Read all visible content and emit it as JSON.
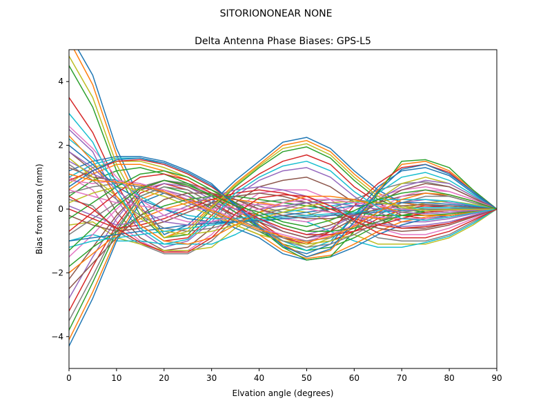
{
  "figure": {
    "suptitle": "SITORIONONEAR   NONE"
  },
  "chart_data": {
    "type": "line",
    "title": "Delta Antenna Phase Biases: GPS-L5",
    "xlabel": "Elvation angle (degrees)",
    "ylabel": "Bias from mean (mm)",
    "xlim": [
      0,
      90
    ],
    "ylim": [
      -5,
      5
    ],
    "xticks": [
      0,
      10,
      20,
      30,
      40,
      50,
      60,
      70,
      80,
      90
    ],
    "yticks": [
      -4,
      -2,
      0,
      2,
      4
    ],
    "grid": false,
    "legend": "none",
    "x": [
      0,
      5,
      10,
      15,
      20,
      25,
      30,
      35,
      40,
      45,
      50,
      55,
      60,
      65,
      70,
      75,
      80,
      85,
      90
    ],
    "colors": [
      "#1f77b4",
      "#ff7f0e",
      "#2ca02c",
      "#d62728",
      "#9467bd",
      "#8c564b",
      "#e377c2",
      "#7f7f7f",
      "#bcbd22",
      "#17becf"
    ],
    "series": [
      {
        "values": [
          5.5,
          4.2,
          1.9,
          0.3,
          -0.8,
          -0.5,
          0.2,
          0.9,
          1.5,
          2.1,
          2.25,
          1.9,
          1.2,
          0.6,
          0.2,
          0.1,
          0.1,
          0.05,
          0
        ]
      },
      {
        "values": [
          5.3,
          3.9,
          1.7,
          0.1,
          -0.9,
          -0.6,
          0.1,
          0.8,
          1.4,
          2.0,
          2.15,
          1.8,
          1.1,
          0.5,
          0.2,
          0.1,
          0.05,
          0.03,
          0
        ]
      },
      {
        "values": [
          4.5,
          3.2,
          1.2,
          -0.2,
          -0.9,
          -0.8,
          0.0,
          0.7,
          1.3,
          1.8,
          1.95,
          1.6,
          0.9,
          0.3,
          0.0,
          -0.1,
          -0.05,
          -0.02,
          0
        ]
      },
      {
        "values": [
          3.5,
          2.4,
          0.8,
          -0.5,
          -1.0,
          -0.9,
          -0.2,
          0.6,
          1.1,
          1.5,
          1.7,
          1.4,
          0.7,
          0.2,
          -0.2,
          -0.3,
          -0.2,
          -0.1,
          0
        ]
      },
      {
        "values": [
          2.5,
          1.8,
          0.3,
          -0.7,
          -1.2,
          -1.0,
          -0.4,
          0.4,
          0.9,
          1.2,
          1.3,
          1.0,
          0.4,
          -0.1,
          -0.4,
          -0.4,
          -0.3,
          -0.15,
          0
        ]
      },
      {
        "values": [
          1.8,
          1.2,
          -0.1,
          -0.9,
          -1.3,
          -1.2,
          -0.6,
          0.2,
          0.7,
          0.9,
          1.0,
          0.7,
          0.2,
          -0.3,
          -0.6,
          -0.6,
          -0.45,
          -0.2,
          0
        ]
      },
      {
        "values": [
          1.0,
          0.6,
          -0.4,
          -1.0,
          -1.35,
          -1.3,
          -0.8,
          0.0,
          0.5,
          0.6,
          0.6,
          0.3,
          -0.2,
          -0.6,
          -0.8,
          -0.8,
          -0.6,
          -0.3,
          0
        ]
      },
      {
        "values": [
          0.3,
          0.1,
          -0.7,
          -1.1,
          -1.4,
          -1.4,
          -1.0,
          -0.3,
          0.2,
          0.3,
          0.2,
          -0.1,
          -0.5,
          -0.9,
          -1.0,
          -1.0,
          -0.8,
          -0.4,
          0
        ]
      },
      {
        "values": [
          -0.5,
          -0.4,
          -0.9,
          -1.1,
          -1.3,
          -1.3,
          -1.2,
          -0.6,
          -0.1,
          0.0,
          -0.1,
          -0.4,
          -0.8,
          -1.1,
          -1.1,
          -1.1,
          -0.9,
          -0.5,
          0
        ]
      },
      {
        "values": [
          -1.0,
          -0.8,
          -1.0,
          -1.0,
          -1.1,
          -1.1,
          -1.1,
          -0.8,
          -0.4,
          -0.3,
          -0.4,
          -0.7,
          -1.0,
          -1.2,
          -1.2,
          -1.05,
          -0.85,
          -0.45,
          0
        ]
      },
      {
        "values": [
          -4.3,
          -2.8,
          -1.0,
          0.2,
          0.5,
          0.3,
          -0.2,
          -0.6,
          -0.9,
          -1.4,
          -1.6,
          -1.5,
          -1.2,
          -0.8,
          -0.5,
          -0.3,
          -0.2,
          -0.1,
          0
        ]
      },
      {
        "values": [
          -4.1,
          -2.6,
          -0.9,
          0.3,
          0.6,
          0.4,
          -0.1,
          -0.5,
          -0.8,
          -1.3,
          -1.55,
          -1.45,
          -1.1,
          -0.7,
          -0.4,
          -0.25,
          -0.15,
          -0.05,
          0
        ]
      },
      {
        "values": [
          -3.8,
          -2.3,
          -0.7,
          0.4,
          0.7,
          0.5,
          0.0,
          -0.4,
          -0.7,
          -1.1,
          -1.3,
          -1.2,
          -0.9,
          -0.5,
          -0.2,
          -0.1,
          -0.05,
          -0.02,
          0
        ]
      },
      {
        "values": [
          -3.2,
          -1.8,
          -0.5,
          0.5,
          0.8,
          0.6,
          0.2,
          -0.2,
          -0.5,
          -0.9,
          -1.1,
          -1.0,
          -0.7,
          -0.3,
          0.0,
          0.1,
          0.05,
          0.02,
          0
        ]
      },
      {
        "values": [
          -2.8,
          -1.5,
          -0.3,
          0.6,
          0.8,
          0.7,
          0.3,
          -0.1,
          -0.3,
          -0.7,
          -0.9,
          -0.8,
          -0.5,
          -0.1,
          0.2,
          0.3,
          0.2,
          0.1,
          0
        ]
      },
      {
        "values": [
          -2.2,
          -1.2,
          -0.2,
          0.6,
          0.9,
          0.7,
          0.4,
          0.0,
          -0.2,
          -0.5,
          -0.7,
          -0.5,
          -0.2,
          0.2,
          0.4,
          0.5,
          0.4,
          0.2,
          0
        ]
      },
      {
        "values": [
          -1.5,
          -0.8,
          0.0,
          0.7,
          0.9,
          0.8,
          0.5,
          0.2,
          0.0,
          -0.3,
          -0.4,
          -0.2,
          0.1,
          0.4,
          0.6,
          0.7,
          0.55,
          0.3,
          0
        ]
      },
      {
        "values": [
          -0.8,
          -0.3,
          0.2,
          0.7,
          0.9,
          0.8,
          0.6,
          0.3,
          0.1,
          -0.1,
          -0.2,
          0.0,
          0.3,
          0.6,
          0.8,
          0.85,
          0.7,
          0.35,
          0
        ]
      },
      {
        "values": [
          0.8,
          1.3,
          1.5,
          1.5,
          1.3,
          1.0,
          0.6,
          0.1,
          -0.4,
          -0.9,
          -1.2,
          -0.9,
          -0.3,
          0.3,
          0.8,
          1.0,
          0.8,
          0.4,
          0
        ]
      },
      {
        "values": [
          1.0,
          1.4,
          1.6,
          1.6,
          1.4,
          1.1,
          0.7,
          0.2,
          -0.5,
          -1.0,
          -1.3,
          -1.0,
          -0.2,
          0.5,
          1.0,
          1.15,
          0.9,
          0.45,
          0
        ]
      },
      {
        "values": [
          1.2,
          1.5,
          1.65,
          1.65,
          1.5,
          1.2,
          0.8,
          0.1,
          -0.6,
          -1.2,
          -1.4,
          -1.1,
          -0.2,
          0.7,
          1.2,
          1.3,
          1.05,
          0.5,
          0
        ]
      },
      {
        "values": [
          0.6,
          1.1,
          1.4,
          1.4,
          1.2,
          0.9,
          0.5,
          0.0,
          -0.5,
          -1.1,
          -1.5,
          -1.3,
          -0.5,
          0.6,
          1.4,
          1.5,
          1.2,
          0.6,
          0
        ]
      },
      {
        "values": [
          0.4,
          0.9,
          1.2,
          1.3,
          1.1,
          0.8,
          0.4,
          -0.1,
          -0.6,
          -1.2,
          -1.6,
          -1.5,
          -0.7,
          0.5,
          1.5,
          1.55,
          1.3,
          0.6,
          0
        ]
      },
      {
        "values": [
          0.9,
          1.2,
          1.5,
          1.55,
          1.4,
          1.1,
          0.7,
          0.2,
          -0.4,
          -0.9,
          -1.1,
          -0.7,
          0.1,
          0.8,
          1.3,
          1.4,
          1.15,
          0.55,
          0
        ]
      },
      {
        "values": [
          1.5,
          1.1,
          0.8,
          0.7,
          0.6,
          0.4,
          0.2,
          0.0,
          -0.3,
          -0.6,
          -0.8,
          -0.6,
          -0.2,
          0.3,
          0.7,
          0.9,
          0.8,
          0.4,
          0
        ]
      },
      {
        "values": [
          1.3,
          1.0,
          0.9,
          0.8,
          0.5,
          0.3,
          0.1,
          -0.2,
          -0.4,
          -0.7,
          -0.9,
          -0.7,
          -0.3,
          0.2,
          0.6,
          0.8,
          0.7,
          0.35,
          0
        ]
      },
      {
        "values": [
          0.9,
          0.8,
          0.9,
          0.8,
          0.6,
          0.3,
          0.0,
          -0.3,
          -0.6,
          -0.8,
          -1.0,
          -0.8,
          -0.5,
          0.0,
          0.4,
          0.6,
          0.55,
          0.3,
          0
        ]
      },
      {
        "values": [
          0.5,
          0.7,
          0.8,
          0.7,
          0.5,
          0.2,
          -0.1,
          -0.4,
          -0.7,
          -0.9,
          -1.0,
          -0.9,
          -0.6,
          -0.2,
          0.2,
          0.4,
          0.4,
          0.2,
          0
        ]
      },
      {
        "values": [
          0.2,
          0.5,
          0.7,
          0.6,
          0.4,
          0.1,
          -0.2,
          -0.5,
          -0.8,
          -1.0,
          -1.1,
          -1.0,
          -0.8,
          -0.4,
          0.0,
          0.2,
          0.25,
          0.15,
          0
        ]
      },
      {
        "values": [
          2.2,
          1.6,
          0.9,
          0.4,
          0.0,
          -0.2,
          -0.3,
          -0.3,
          -0.2,
          -0.1,
          0.0,
          0.1,
          0.2,
          0.3,
          0.3,
          0.3,
          0.25,
          0.12,
          0
        ]
      },
      {
        "values": [
          2.0,
          1.4,
          0.7,
          0.3,
          0.0,
          -0.3,
          -0.4,
          -0.4,
          -0.3,
          -0.2,
          -0.1,
          0.0,
          0.1,
          0.15,
          0.2,
          0.2,
          0.15,
          0.08,
          0
        ]
      },
      {
        "values": [
          -2.0,
          -1.4,
          -0.8,
          -0.3,
          0.0,
          0.2,
          0.3,
          0.3,
          0.2,
          0.1,
          0.0,
          -0.1,
          -0.2,
          -0.3,
          -0.3,
          -0.3,
          -0.25,
          -0.12,
          0
        ]
      },
      {
        "values": [
          -1.8,
          -1.2,
          -0.7,
          -0.2,
          0.1,
          0.3,
          0.4,
          0.4,
          0.3,
          0.2,
          0.1,
          0.0,
          -0.1,
          -0.2,
          -0.2,
          -0.2,
          -0.15,
          -0.08,
          0
        ]
      },
      {
        "values": [
          0.0,
          -0.3,
          -0.6,
          -0.5,
          -0.3,
          0.0,
          0.3,
          0.5,
          0.6,
          0.5,
          0.3,
          0.0,
          -0.3,
          -0.5,
          -0.6,
          -0.55,
          -0.45,
          -0.22,
          0
        ]
      },
      {
        "values": [
          0.1,
          -0.2,
          -0.5,
          -0.4,
          -0.2,
          0.1,
          0.4,
          0.6,
          0.7,
          0.6,
          0.4,
          0.1,
          -0.2,
          -0.45,
          -0.55,
          -0.5,
          -0.4,
          -0.2,
          0
        ]
      },
      {
        "values": [
          -0.2,
          -0.5,
          -0.7,
          -0.6,
          -0.4,
          -0.1,
          0.2,
          0.4,
          0.5,
          0.4,
          0.2,
          -0.1,
          -0.4,
          -0.6,
          -0.7,
          -0.65,
          -0.5,
          -0.25,
          0
        ]
      },
      {
        "values": [
          0.6,
          0.4,
          0.2,
          0.1,
          0.0,
          0.0,
          0.0,
          0.1,
          0.15,
          0.1,
          0.0,
          -0.1,
          -0.2,
          -0.25,
          -0.3,
          -0.3,
          -0.25,
          -0.12,
          0
        ]
      },
      {
        "values": [
          1.4,
          0.9,
          0.3,
          -0.2,
          -0.6,
          -0.7,
          -0.6,
          -0.4,
          -0.2,
          0.0,
          0.2,
          0.3,
          0.3,
          0.2,
          0.1,
          0.0,
          -0.05,
          -0.03,
          0
        ]
      },
      {
        "values": [
          1.6,
          1.0,
          0.4,
          -0.3,
          -0.7,
          -0.8,
          -0.7,
          -0.5,
          -0.3,
          -0.1,
          0.1,
          0.2,
          0.25,
          0.2,
          0.1,
          0.0,
          -0.05,
          -0.03,
          0
        ]
      },
      {
        "values": [
          -1.2,
          -1.0,
          -0.9,
          -0.8,
          -0.7,
          -0.6,
          -0.5,
          -0.4,
          -0.3,
          -0.25,
          -0.2,
          -0.15,
          -0.1,
          -0.05,
          0.0,
          0.05,
          0.05,
          0.03,
          0
        ]
      },
      {
        "values": [
          -1.0,
          -0.9,
          -0.8,
          -0.7,
          -0.6,
          -0.5,
          -0.45,
          -0.4,
          -0.35,
          -0.3,
          -0.25,
          -0.2,
          -0.15,
          -0.1,
          -0.05,
          0.0,
          0.0,
          0.0,
          0
        ]
      },
      {
        "values": [
          2.3,
          1.5,
          0.4,
          -0.5,
          -1.0,
          -1.1,
          -0.9,
          -0.5,
          -0.1,
          0.2,
          0.4,
          0.4,
          0.3,
          0.1,
          -0.1,
          -0.2,
          -0.2,
          -0.1,
          0
        ]
      },
      {
        "values": [
          -0.3,
          0.2,
          0.7,
          1.1,
          1.2,
          1.0,
          0.6,
          0.2,
          -0.2,
          -0.5,
          -0.7,
          -0.7,
          -0.6,
          -0.4,
          -0.2,
          -0.05,
          0.0,
          0.0,
          0
        ]
      },
      {
        "values": [
          -0.7,
          -0.1,
          0.5,
          1.0,
          1.1,
          0.9,
          0.5,
          0.1,
          -0.3,
          -0.6,
          -0.8,
          -0.8,
          -0.7,
          -0.5,
          -0.3,
          -0.1,
          -0.05,
          -0.02,
          0
        ]
      },
      {
        "values": [
          1.8,
          1.3,
          0.6,
          0.0,
          -0.4,
          -0.5,
          -0.4,
          -0.2,
          0.0,
          0.1,
          0.2,
          0.2,
          0.1,
          0.0,
          -0.1,
          -0.15,
          -0.1,
          -0.05,
          0
        ]
      },
      {
        "values": [
          -2.5,
          -1.7,
          -0.9,
          -0.2,
          0.3,
          0.5,
          0.5,
          0.3,
          0.0,
          -0.2,
          -0.3,
          -0.3,
          -0.2,
          0.0,
          0.1,
          0.15,
          0.1,
          0.05,
          0
        ]
      },
      {
        "values": [
          2.6,
          1.9,
          1.0,
          0.3,
          -0.2,
          -0.4,
          -0.4,
          -0.2,
          0.0,
          0.2,
          0.3,
          0.3,
          0.2,
          0.1,
          0.0,
          -0.05,
          -0.05,
          -0.02,
          0
        ]
      },
      {
        "values": [
          -3.5,
          -2.1,
          -0.6,
          0.4,
          0.7,
          0.6,
          0.2,
          -0.3,
          -0.6,
          -1.0,
          -1.2,
          -1.1,
          -0.8,
          -0.4,
          -0.1,
          0.0,
          0.0,
          0.0,
          0
        ]
      },
      {
        "values": [
          4.8,
          3.5,
          1.4,
          0.0,
          -0.9,
          -0.7,
          0.05,
          0.75,
          1.35,
          1.9,
          2.05,
          1.7,
          1.0,
          0.4,
          0.05,
          -0.05,
          -0.02,
          -0.01,
          0
        ]
      },
      {
        "values": [
          3.0,
          2.1,
          0.6,
          -0.6,
          -1.1,
          -0.95,
          -0.3,
          0.5,
          1.0,
          1.35,
          1.5,
          1.2,
          0.55,
          0.05,
          -0.3,
          -0.35,
          -0.25,
          -0.12,
          0
        ]
      },
      {
        "values": [
          0.7,
          1.2,
          1.55,
          1.6,
          1.45,
          1.15,
          0.75,
          0.15,
          -0.55,
          -1.15,
          -1.5,
          -1.25,
          -0.4,
          0.55,
          1.25,
          1.4,
          1.1,
          0.55,
          0
        ]
      },
      {
        "values": [
          1.1,
          0.9,
          0.85,
          0.75,
          0.55,
          0.25,
          -0.05,
          -0.35,
          -0.65,
          -0.85,
          -1.05,
          -0.85,
          -0.55,
          -0.1,
          0.3,
          0.5,
          0.45,
          0.25,
          0
        ]
      },
      {
        "values": [
          -1.3,
          -0.6,
          0.1,
          0.65,
          0.9,
          0.75,
          0.45,
          0.1,
          -0.1,
          -0.4,
          -0.55,
          -0.35,
          -0.05,
          0.3,
          0.5,
          0.6,
          0.45,
          0.25,
          0
        ]
      },
      {
        "values": [
          0.4,
          0.0,
          -0.6,
          -1.05,
          -1.35,
          -1.35,
          -0.9,
          -0.15,
          0.35,
          0.45,
          0.4,
          0.1,
          -0.35,
          -0.75,
          -0.9,
          -0.9,
          -0.7,
          -0.35,
          0
        ]
      }
    ]
  }
}
